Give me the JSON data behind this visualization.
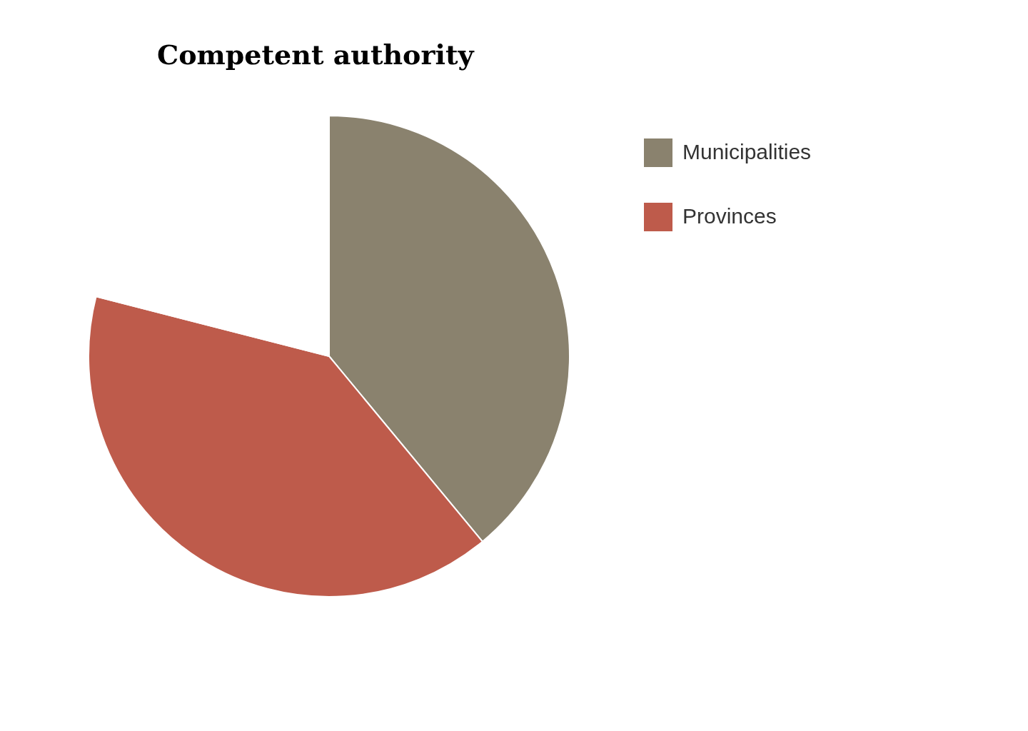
{
  "chart_data": {
    "type": "pie",
    "title": "Competent authority",
    "categories": [
      "Municipalities",
      "Provinces",
      null
    ],
    "values": [
      39,
      40,
      21
    ],
    "colors": [
      "#8a826e",
      "#be5b4b",
      "#ffffff"
    ],
    "legend": "right"
  }
}
